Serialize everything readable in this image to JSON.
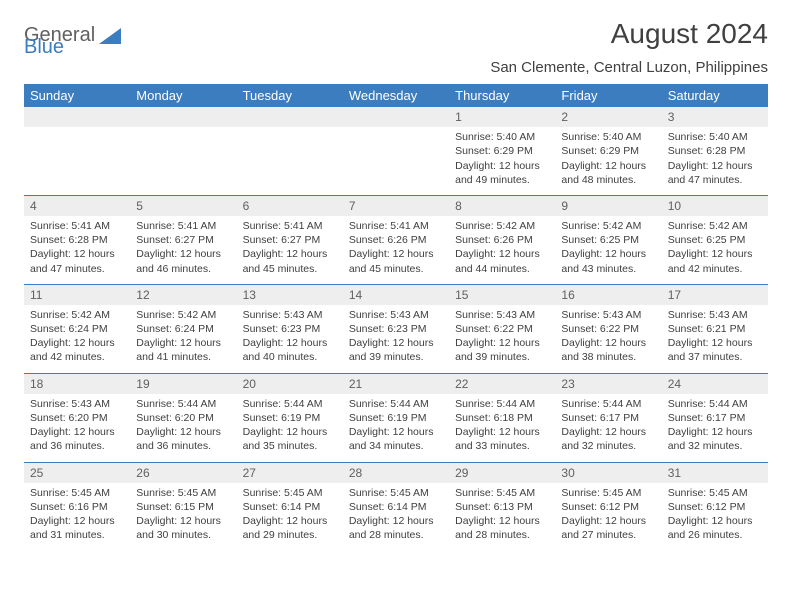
{
  "logo": {
    "text1": "General",
    "text2": "Blue"
  },
  "title": "August 2024",
  "subtitle": "San Clemente, Central Luzon, Philippines",
  "colors": {
    "header_bg": "#3b7dbf",
    "header_text": "#ffffff",
    "daynum_bg": "#eeeeee",
    "body_text": "#404040",
    "row_divider": "#3b7dbf"
  },
  "weekdays": [
    "Sunday",
    "Monday",
    "Tuesday",
    "Wednesday",
    "Thursday",
    "Friday",
    "Saturday"
  ],
  "weeks": [
    [
      null,
      null,
      null,
      null,
      {
        "n": "1",
        "sunrise": "5:40 AM",
        "sunset": "6:29 PM",
        "daylight": "12 hours and 49 minutes."
      },
      {
        "n": "2",
        "sunrise": "5:40 AM",
        "sunset": "6:29 PM",
        "daylight": "12 hours and 48 minutes."
      },
      {
        "n": "3",
        "sunrise": "5:40 AM",
        "sunset": "6:28 PM",
        "daylight": "12 hours and 47 minutes."
      }
    ],
    [
      {
        "n": "4",
        "sunrise": "5:41 AM",
        "sunset": "6:28 PM",
        "daylight": "12 hours and 47 minutes."
      },
      {
        "n": "5",
        "sunrise": "5:41 AM",
        "sunset": "6:27 PM",
        "daylight": "12 hours and 46 minutes."
      },
      {
        "n": "6",
        "sunrise": "5:41 AM",
        "sunset": "6:27 PM",
        "daylight": "12 hours and 45 minutes."
      },
      {
        "n": "7",
        "sunrise": "5:41 AM",
        "sunset": "6:26 PM",
        "daylight": "12 hours and 45 minutes."
      },
      {
        "n": "8",
        "sunrise": "5:42 AM",
        "sunset": "6:26 PM",
        "daylight": "12 hours and 44 minutes."
      },
      {
        "n": "9",
        "sunrise": "5:42 AM",
        "sunset": "6:25 PM",
        "daylight": "12 hours and 43 minutes."
      },
      {
        "n": "10",
        "sunrise": "5:42 AM",
        "sunset": "6:25 PM",
        "daylight": "12 hours and 42 minutes."
      }
    ],
    [
      {
        "n": "11",
        "sunrise": "5:42 AM",
        "sunset": "6:24 PM",
        "daylight": "12 hours and 42 minutes."
      },
      {
        "n": "12",
        "sunrise": "5:42 AM",
        "sunset": "6:24 PM",
        "daylight": "12 hours and 41 minutes."
      },
      {
        "n": "13",
        "sunrise": "5:43 AM",
        "sunset": "6:23 PM",
        "daylight": "12 hours and 40 minutes."
      },
      {
        "n": "14",
        "sunrise": "5:43 AM",
        "sunset": "6:23 PM",
        "daylight": "12 hours and 39 minutes."
      },
      {
        "n": "15",
        "sunrise": "5:43 AM",
        "sunset": "6:22 PM",
        "daylight": "12 hours and 39 minutes."
      },
      {
        "n": "16",
        "sunrise": "5:43 AM",
        "sunset": "6:22 PM",
        "daylight": "12 hours and 38 minutes."
      },
      {
        "n": "17",
        "sunrise": "5:43 AM",
        "sunset": "6:21 PM",
        "daylight": "12 hours and 37 minutes."
      }
    ],
    [
      {
        "n": "18",
        "sunrise": "5:43 AM",
        "sunset": "6:20 PM",
        "daylight": "12 hours and 36 minutes."
      },
      {
        "n": "19",
        "sunrise": "5:44 AM",
        "sunset": "6:20 PM",
        "daylight": "12 hours and 36 minutes."
      },
      {
        "n": "20",
        "sunrise": "5:44 AM",
        "sunset": "6:19 PM",
        "daylight": "12 hours and 35 minutes."
      },
      {
        "n": "21",
        "sunrise": "5:44 AM",
        "sunset": "6:19 PM",
        "daylight": "12 hours and 34 minutes."
      },
      {
        "n": "22",
        "sunrise": "5:44 AM",
        "sunset": "6:18 PM",
        "daylight": "12 hours and 33 minutes."
      },
      {
        "n": "23",
        "sunrise": "5:44 AM",
        "sunset": "6:17 PM",
        "daylight": "12 hours and 32 minutes."
      },
      {
        "n": "24",
        "sunrise": "5:44 AM",
        "sunset": "6:17 PM",
        "daylight": "12 hours and 32 minutes."
      }
    ],
    [
      {
        "n": "25",
        "sunrise": "5:45 AM",
        "sunset": "6:16 PM",
        "daylight": "12 hours and 31 minutes."
      },
      {
        "n": "26",
        "sunrise": "5:45 AM",
        "sunset": "6:15 PM",
        "daylight": "12 hours and 30 minutes."
      },
      {
        "n": "27",
        "sunrise": "5:45 AM",
        "sunset": "6:14 PM",
        "daylight": "12 hours and 29 minutes."
      },
      {
        "n": "28",
        "sunrise": "5:45 AM",
        "sunset": "6:14 PM",
        "daylight": "12 hours and 28 minutes."
      },
      {
        "n": "29",
        "sunrise": "5:45 AM",
        "sunset": "6:13 PM",
        "daylight": "12 hours and 28 minutes."
      },
      {
        "n": "30",
        "sunrise": "5:45 AM",
        "sunset": "6:12 PM",
        "daylight": "12 hours and 27 minutes."
      },
      {
        "n": "31",
        "sunrise": "5:45 AM",
        "sunset": "6:12 PM",
        "daylight": "12 hours and 26 minutes."
      }
    ]
  ],
  "labels": {
    "sunrise": "Sunrise: ",
    "sunset": "Sunset: ",
    "daylight": "Daylight: "
  }
}
